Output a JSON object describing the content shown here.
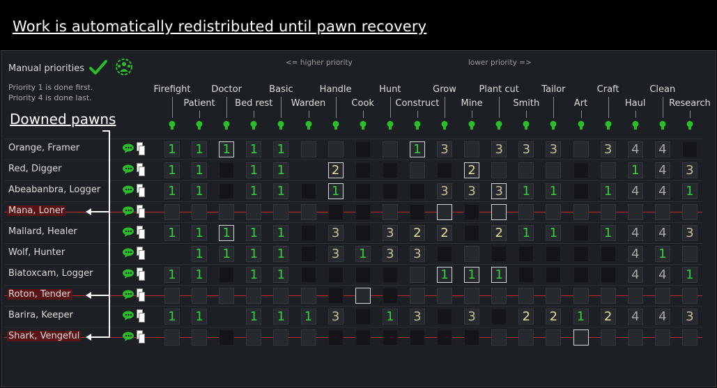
{
  "title": "Work is automatically redistributed until pawn recovery",
  "panel": {
    "manual_priorities": "Manual priorities",
    "hint_line1": "Priority 1 is done first.",
    "hint_line2": "Priority 4 is done last.",
    "higher": "<= higher priority",
    "lower": "lower priority =>",
    "downed_label": "Downed pawns",
    "colors": {
      "p1": "#36d13c",
      "p2": "#e9df9d",
      "downed": "#c4262e",
      "accent": "#2bbd2b"
    }
  },
  "columns": [
    "Firefight",
    "Patient",
    "Doctor",
    "Bed rest",
    "Basic",
    "Warden",
    "Handle",
    "Cook",
    "Hunt",
    "Construct",
    "Grow",
    "Mine",
    "Plant cut",
    "Smith",
    "Tailor",
    "Art",
    "Craft",
    "Haul",
    "Clean",
    "Research"
  ],
  "rows": [
    {
      "name": "Orange, Framer",
      "downed": false,
      "cells": [
        [
          "1"
        ],
        [
          "1"
        ],
        [
          "1",
          "s"
        ],
        [
          "1"
        ],
        [
          "1"
        ],
        [
          "",
          "e"
        ],
        [
          "",
          "e"
        ],
        [
          "",
          "d"
        ],
        [
          "",
          "e"
        ],
        [
          "1",
          "s"
        ],
        [
          "3",
          "e"
        ],
        [
          "",
          "e"
        ],
        [
          "3"
        ],
        [
          "3"
        ],
        [
          "3"
        ],
        [
          "",
          "e"
        ],
        [
          "3"
        ],
        [
          "4"
        ],
        [
          "4"
        ],
        [
          "",
          "d"
        ]
      ]
    },
    {
      "name": "Red, Digger",
      "downed": false,
      "cells": [
        [
          "1"
        ],
        [
          "1"
        ],
        [
          "",
          "d"
        ],
        [
          "1"
        ],
        [
          "1"
        ],
        [
          "",
          "n"
        ],
        [
          "2",
          "s"
        ],
        [
          "",
          "d"
        ],
        [
          "",
          "d"
        ],
        [
          "",
          "e"
        ],
        [
          "",
          "d"
        ],
        [
          "2",
          "s"
        ],
        [
          "",
          "e"
        ],
        [
          "",
          "e"
        ],
        [
          "",
          "e"
        ],
        [
          "",
          "d"
        ],
        [
          "",
          "e"
        ],
        [
          "1"
        ],
        [
          "4"
        ],
        [
          "3"
        ]
      ]
    },
    {
      "name": "Abeabanbra, Logger",
      "downed": false,
      "cells": [
        [
          "1"
        ],
        [
          "1"
        ],
        [
          "",
          "d"
        ],
        [
          "1"
        ],
        [
          "1"
        ],
        [
          "",
          "d"
        ],
        [
          "1",
          "s"
        ],
        [
          "",
          "d"
        ],
        [
          "",
          "d"
        ],
        [
          "",
          "d"
        ],
        [
          "3"
        ],
        [
          "3"
        ],
        [
          "3",
          "s"
        ],
        [
          "1"
        ],
        [
          "1"
        ],
        [
          "",
          "d"
        ],
        [
          "1"
        ],
        [
          "4"
        ],
        [
          "4"
        ],
        [
          "1"
        ]
      ]
    },
    {
      "name": "Mana, Loner",
      "downed": true,
      "cells": [
        [
          "",
          "e"
        ],
        [
          "",
          "e"
        ],
        [
          "",
          "e"
        ],
        [
          "",
          "e"
        ],
        [
          "",
          "e"
        ],
        [
          "",
          "e"
        ],
        [
          "",
          "d"
        ],
        [
          "",
          "d"
        ],
        [
          "",
          "e"
        ],
        [
          "",
          "d"
        ],
        [
          "",
          "s"
        ],
        [
          "",
          "d"
        ],
        [
          "",
          "s"
        ],
        [
          "",
          "e"
        ],
        [
          "",
          "e"
        ],
        [
          "",
          "e"
        ],
        [
          "",
          "e"
        ],
        [
          "",
          "e"
        ],
        [
          "",
          "e"
        ],
        [
          "",
          "e"
        ]
      ]
    },
    {
      "name": "Mallard, Healer",
      "downed": false,
      "cells": [
        [
          "1"
        ],
        [
          "1"
        ],
        [
          "1",
          "s"
        ],
        [
          "1"
        ],
        [
          "1"
        ],
        [
          "",
          "d"
        ],
        [
          "3"
        ],
        [
          "",
          "d"
        ],
        [
          "3"
        ],
        [
          "2"
        ],
        [
          "2"
        ],
        [
          "",
          "d"
        ],
        [
          "2"
        ],
        [
          "1"
        ],
        [
          "1"
        ],
        [
          "",
          "d"
        ],
        [
          "1"
        ],
        [
          "4"
        ],
        [
          "4"
        ],
        [
          "3"
        ]
      ]
    },
    {
      "name": "Wolf, Hunter",
      "downed": false,
      "cells": [
        [
          "",
          "n"
        ],
        [
          "1"
        ],
        [
          "1"
        ],
        [
          "1"
        ],
        [
          "1"
        ],
        [
          "",
          "d"
        ],
        [
          "3"
        ],
        [
          "1"
        ],
        [
          "3"
        ],
        [
          "3"
        ],
        [
          "",
          "d"
        ],
        [
          "",
          "e"
        ],
        [
          "",
          "d"
        ],
        [
          "",
          "d"
        ],
        [
          "",
          "d"
        ],
        [
          "",
          "d"
        ],
        [
          "",
          "d"
        ],
        [
          "4"
        ],
        [
          "1"
        ],
        [
          "",
          "e"
        ]
      ]
    },
    {
      "name": "Biatoxcam, Logger",
      "downed": false,
      "cells": [
        [
          "1"
        ],
        [
          "1"
        ],
        [
          "",
          "d"
        ],
        [
          "1"
        ],
        [
          "1"
        ],
        [
          "",
          "d"
        ],
        [
          "",
          "d"
        ],
        [
          "",
          "d"
        ],
        [
          "",
          "d"
        ],
        [
          "",
          "e"
        ],
        [
          "1",
          "s"
        ],
        [
          "1",
          "s"
        ],
        [
          "1",
          "s"
        ],
        [
          "",
          "d"
        ],
        [
          "",
          "d"
        ],
        [
          "",
          "d"
        ],
        [
          "",
          "d"
        ],
        [
          "4"
        ],
        [
          "4"
        ],
        [
          "1"
        ]
      ]
    },
    {
      "name": "Roton, Tender",
      "downed": true,
      "cells": [
        [
          "",
          "e"
        ],
        [
          "",
          "e"
        ],
        [
          "",
          "e"
        ],
        [
          "",
          "e"
        ],
        [
          "",
          "e"
        ],
        [
          "",
          "e"
        ],
        [
          "",
          "d"
        ],
        [
          "",
          "s"
        ],
        [
          "",
          "d"
        ],
        [
          "",
          "e"
        ],
        [
          "",
          "e"
        ],
        [
          "",
          "e"
        ],
        [
          "",
          "e"
        ],
        [
          "",
          "e"
        ],
        [
          "",
          "e"
        ],
        [
          "",
          "e"
        ],
        [
          "",
          "e"
        ],
        [
          "",
          "e"
        ],
        [
          "",
          "e"
        ],
        [
          "",
          "e"
        ]
      ]
    },
    {
      "name": "Barira, Keeper",
      "downed": false,
      "cells": [
        [
          "1"
        ],
        [
          "1"
        ],
        [
          "",
          "n"
        ],
        [
          "1"
        ],
        [
          "1"
        ],
        [
          "1"
        ],
        [
          "3"
        ],
        [
          "",
          "d"
        ],
        [
          "1"
        ],
        [
          "3"
        ],
        [
          "",
          "d"
        ],
        [
          "3"
        ],
        [
          "",
          "d"
        ],
        [
          "2"
        ],
        [
          "2"
        ],
        [
          "1"
        ],
        [
          "2"
        ],
        [
          "4"
        ],
        [
          "4"
        ],
        [
          "3"
        ]
      ]
    },
    {
      "name": "Shark, Vengeful",
      "downed": true,
      "cells": [
        [
          "",
          "e"
        ],
        [
          "",
          "e"
        ],
        [
          "",
          "d"
        ],
        [
          "",
          "e"
        ],
        [
          "",
          "e"
        ],
        [
          "",
          "e"
        ],
        [
          "",
          "d"
        ],
        [
          "",
          "d"
        ],
        [
          "",
          "d"
        ],
        [
          "",
          "d"
        ],
        [
          "",
          "d"
        ],
        [
          "",
          "d"
        ],
        [
          "",
          "e"
        ],
        [
          "",
          "e"
        ],
        [
          "",
          "e"
        ],
        [
          "",
          "s"
        ],
        [
          "",
          "e"
        ],
        [
          "",
          "e"
        ],
        [
          "",
          "e"
        ],
        [
          "",
          "e"
        ]
      ]
    }
  ]
}
